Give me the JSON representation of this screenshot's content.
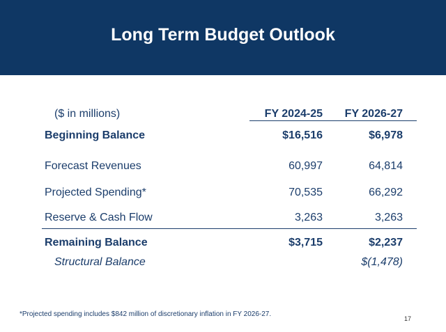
{
  "header": {
    "title": "Long Term Budget Outlook"
  },
  "table": {
    "units": "($ in millions)",
    "columns": [
      "FY 2024-25",
      "FY 2026-27"
    ],
    "rows": [
      {
        "label": "Beginning Balance",
        "values": [
          "$16,516",
          "$6,978"
        ]
      },
      {
        "label": "Forecast Revenues",
        "values": [
          "60,997",
          "64,814"
        ]
      },
      {
        "label": "Projected Spending*",
        "values": [
          "70,535",
          "66,292"
        ]
      },
      {
        "label": "Reserve & Cash Flow",
        "values": [
          "3,263",
          "3,263"
        ]
      },
      {
        "label": "Remaining Balance",
        "values": [
          "$3,715",
          "$2,237"
        ]
      },
      {
        "label": "Structural Balance",
        "values": [
          "",
          "$(1,478)"
        ]
      }
    ]
  },
  "footnote": "*Projected spending includes $842 million of discretionary inflation in FY 2026-27.",
  "page_number": "17"
}
